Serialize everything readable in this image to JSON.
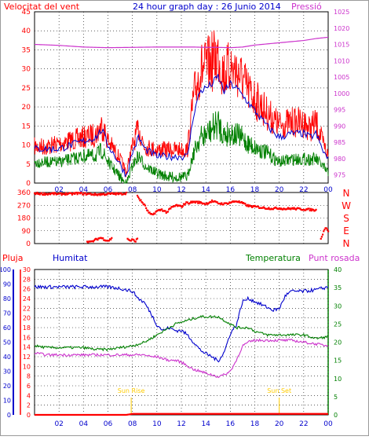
{
  "chart_data": [
    {
      "id": "wind",
      "type": "line",
      "title": "24 hour graph day : 26 Junio 2014",
      "left_label": "Velocitat del vent",
      "right_label": "Pressió",
      "x_ticks": [
        "02",
        "04",
        "06",
        "08",
        "10",
        "12",
        "14",
        "16",
        "18",
        "20",
        "22",
        "00"
      ],
      "y_left": {
        "range": [
          0,
          45
        ],
        "ticks": [
          0,
          5,
          10,
          15,
          20,
          25,
          30,
          35,
          40,
          45
        ]
      },
      "y_right": {
        "range": [
          972.5,
          1025
        ],
        "ticks": [
          975,
          980,
          985,
          990,
          995,
          1000,
          1005,
          1010,
          1015,
          1020,
          1025
        ]
      },
      "colors": {
        "gust": "#ff0000",
        "avg": "#008000",
        "avg_line": "#0000cc",
        "pressure": "#cc33cc"
      },
      "series": [
        {
          "key": "gust",
          "axis": "left",
          "x": [
            0,
            1,
            2,
            3,
            4,
            5,
            5.5,
            6,
            7,
            7.5,
            8,
            8.5,
            9,
            10,
            11,
            12,
            12.5,
            13,
            13.5,
            14,
            14.5,
            15,
            15.5,
            16,
            16.5,
            17,
            17.5,
            18,
            19,
            20,
            21,
            22,
            22.5,
            23,
            23.5,
            24
          ],
          "values": [
            12,
            12,
            13,
            14,
            15,
            16,
            19,
            14,
            8,
            4,
            12,
            18,
            12,
            11,
            11,
            11,
            11,
            28,
            37,
            38,
            40,
            42,
            36,
            38,
            37,
            34,
            30,
            28,
            23,
            19,
            20,
            20,
            18,
            20,
            14,
            9
          ]
        },
        {
          "key": "avg",
          "axis": "left",
          "x": [
            0,
            1,
            2,
            3,
            4,
            5,
            5.5,
            6,
            7,
            7.5,
            8,
            8.5,
            9,
            10,
            11,
            12,
            12.5,
            13,
            13.5,
            14,
            14.5,
            15,
            15.5,
            16,
            16.5,
            17,
            17.5,
            18,
            19,
            20,
            21,
            22,
            22.5,
            23,
            23.5,
            24
          ],
          "values": [
            7,
            7,
            7,
            8,
            9,
            9,
            11,
            7,
            3,
            1,
            6,
            9,
            6,
            4,
            3,
            3,
            3,
            10,
            15,
            16,
            18,
            20,
            16,
            17,
            16,
            15,
            13,
            12,
            10,
            7,
            8,
            8,
            8,
            8,
            6,
            4
          ]
        },
        {
          "key": "avg_line",
          "axis": "left",
          "x": [
            0,
            1,
            2,
            3,
            4,
            5,
            5.5,
            6,
            7,
            7.5,
            8,
            8.5,
            9,
            10,
            11,
            12,
            12.5,
            13,
            13.5,
            14,
            14.5,
            15,
            15.5,
            16,
            16.5,
            17,
            17.5,
            18,
            19,
            20,
            21,
            22,
            22.5,
            23,
            23.5,
            24
          ],
          "values": [
            9,
            9,
            9,
            10,
            11,
            12,
            14,
            10,
            5,
            2,
            8,
            12,
            9,
            7,
            7,
            7,
            7,
            18,
            24,
            25,
            26,
            28,
            24,
            26,
            25,
            23,
            21,
            19,
            15,
            12,
            13,
            13,
            12,
            13,
            9,
            6
          ]
        },
        {
          "key": "pressure",
          "axis": "right",
          "x": [
            0,
            2,
            4,
            6,
            8,
            10,
            12,
            13,
            14,
            15,
            16,
            17,
            18,
            20,
            22,
            23,
            24
          ],
          "values": [
            1015,
            1014.7,
            1014.2,
            1014,
            1014.1,
            1014.2,
            1014.2,
            1014.2,
            1014.1,
            1014.1,
            1014,
            1014.2,
            1014.8,
            1015.5,
            1016.2,
            1016.8,
            1017.2
          ]
        }
      ]
    },
    {
      "id": "direction",
      "type": "scatter",
      "y_range": [
        0,
        360
      ],
      "y_ticks": [
        0,
        90,
        180,
        270,
        360
      ],
      "right_labels": [
        "N",
        "W",
        "S",
        "E",
        "N"
      ],
      "color": "#ff0000",
      "segments": [
        {
          "x": [
            0,
            0.5,
            1,
            1.5,
            2,
            2.5,
            3,
            3.5,
            4,
            4.5,
            5,
            5.5,
            6,
            6.5,
            7,
            7.5
          ],
          "values": [
            355,
            352,
            350,
            353,
            348,
            352,
            350,
            355,
            352,
            350,
            346,
            348,
            350,
            352,
            350,
            356
          ]
        },
        {
          "x": [
            4.3,
            4.6,
            5,
            5.4,
            5.7,
            6,
            6.3
          ],
          "values": [
            18,
            10,
            28,
            42,
            30,
            20,
            36
          ]
        },
        {
          "x": [
            7.6,
            7.8,
            8,
            8.2,
            8.4
          ],
          "values": [
            38,
            20,
            28,
            16,
            32
          ]
        },
        {
          "x": [
            8.4,
            8.6,
            9,
            9.3,
            9.6,
            10,
            10.4,
            10.8,
            11.2,
            11.6,
            12,
            12.4
          ],
          "values": [
            340,
            310,
            270,
            220,
            200,
            230,
            240,
            220,
            255,
            270,
            260,
            290
          ]
        },
        {
          "x": [
            12.5,
            13,
            13.5,
            14,
            14.5,
            15,
            15.5,
            16,
            16.5,
            17,
            17.5,
            18,
            18.5,
            19,
            19.5,
            20,
            20.5,
            21,
            21.5,
            22,
            22.5,
            23
          ],
          "values": [
            285,
            295,
            290,
            280,
            300,
            285,
            280,
            290,
            300,
            285,
            265,
            260,
            255,
            250,
            248,
            250,
            245,
            248,
            245,
            242,
            240,
            235
          ]
        },
        {
          "x": [
            23.4,
            23.6,
            23.8,
            24
          ],
          "values": [
            40,
            80,
            120,
            90
          ]
        }
      ]
    },
    {
      "id": "humidity_temp",
      "type": "line",
      "labels": {
        "rain": "Pluja",
        "humidity": "Humitat",
        "temperature": "Temperatura",
        "dewpoint": "Punt rosada"
      },
      "rain_axis": {
        "range": [
          0,
          30
        ],
        "ticks": [
          0,
          2,
          4,
          6,
          8,
          10,
          12,
          14,
          16,
          18,
          20,
          22,
          24,
          26,
          28,
          30
        ]
      },
      "humidity_axis": {
        "range": [
          0,
          100
        ],
        "ticks": [
          0,
          10,
          20,
          30,
          40,
          50,
          60,
          70,
          80,
          90,
          100
        ]
      },
      "temp_axis": {
        "range": [
          0,
          40
        ],
        "ticks": [
          0,
          5,
          10,
          15,
          20,
          25,
          30,
          35,
          40
        ]
      },
      "colors": {
        "rain": "#ff0000",
        "humidity": "#0000cc",
        "temperature": "#008000",
        "dewpoint": "#cc33cc",
        "sun": "#ffcc00"
      },
      "annotations": [
        {
          "label": "Sun Rise",
          "x": 7.9
        },
        {
          "label": "Sun Set",
          "x": 20
        }
      ],
      "series": [
        {
          "key": "humidity",
          "axis": "humidity",
          "x": [
            0,
            1,
            2,
            3,
            4,
            5,
            6,
            7,
            7.5,
            8,
            8.5,
            9,
            9.5,
            10,
            10.5,
            11,
            11.5,
            12,
            12.5,
            13,
            13.5,
            14,
            14.5,
            15,
            15.5,
            16,
            16.5,
            17,
            17.5,
            18,
            18.5,
            19,
            19.5,
            20,
            20.5,
            21,
            22,
            23,
            24
          ],
          "values": [
            88,
            88,
            88,
            88,
            88,
            88,
            88,
            87,
            86,
            85,
            80,
            77,
            70,
            62,
            58,
            60,
            58,
            58,
            55,
            50,
            45,
            42,
            40,
            37,
            43,
            56,
            62,
            78,
            80,
            78,
            76,
            74,
            72,
            73,
            82,
            85,
            85,
            86,
            88
          ]
        },
        {
          "key": "temperature",
          "axis": "temp",
          "x": [
            0,
            1,
            2,
            3,
            4,
            5,
            6,
            7,
            8,
            8.5,
            9,
            9.5,
            10,
            10.5,
            11,
            11.5,
            12,
            12.5,
            13,
            13.5,
            14,
            14.5,
            15,
            15.5,
            16,
            16.5,
            17,
            17.5,
            18,
            19,
            20,
            21,
            22,
            23,
            24
          ],
          "values": [
            19,
            18.5,
            18.5,
            18.5,
            18.5,
            18,
            18,
            18.5,
            19,
            19.5,
            20,
            21,
            22,
            23,
            24,
            25,
            25.5,
            26,
            26.5,
            27,
            27,
            27,
            27,
            26,
            25,
            24,
            24,
            24,
            23,
            22,
            22,
            22,
            22,
            21,
            21.5
          ]
        },
        {
          "key": "dewpoint",
          "axis": "temp",
          "x": [
            0,
            1,
            2,
            3,
            4,
            5,
            6,
            7,
            8,
            8.5,
            9,
            9.5,
            10,
            10.5,
            11,
            11.5,
            12,
            12.5,
            13,
            13.5,
            14,
            14.5,
            15,
            15.5,
            16,
            16.5,
            17,
            17.5,
            18,
            19,
            20,
            21,
            22,
            23,
            24
          ],
          "values": [
            17,
            16.5,
            16.5,
            16.5,
            16.5,
            16.5,
            16.5,
            16.5,
            16.5,
            16.5,
            16.5,
            16,
            16,
            15.5,
            15,
            15,
            14.5,
            13.5,
            12.5,
            12,
            11.5,
            11,
            10.5,
            11,
            12,
            15,
            19,
            20,
            20.5,
            20.5,
            20.5,
            20.5,
            20,
            19.5,
            19
          ]
        },
        {
          "key": "rain",
          "axis": "rain",
          "x": [
            0,
            7.5,
            8,
            24
          ],
          "values": [
            0,
            0,
            0.2,
            0.2
          ]
        }
      ]
    }
  ]
}
